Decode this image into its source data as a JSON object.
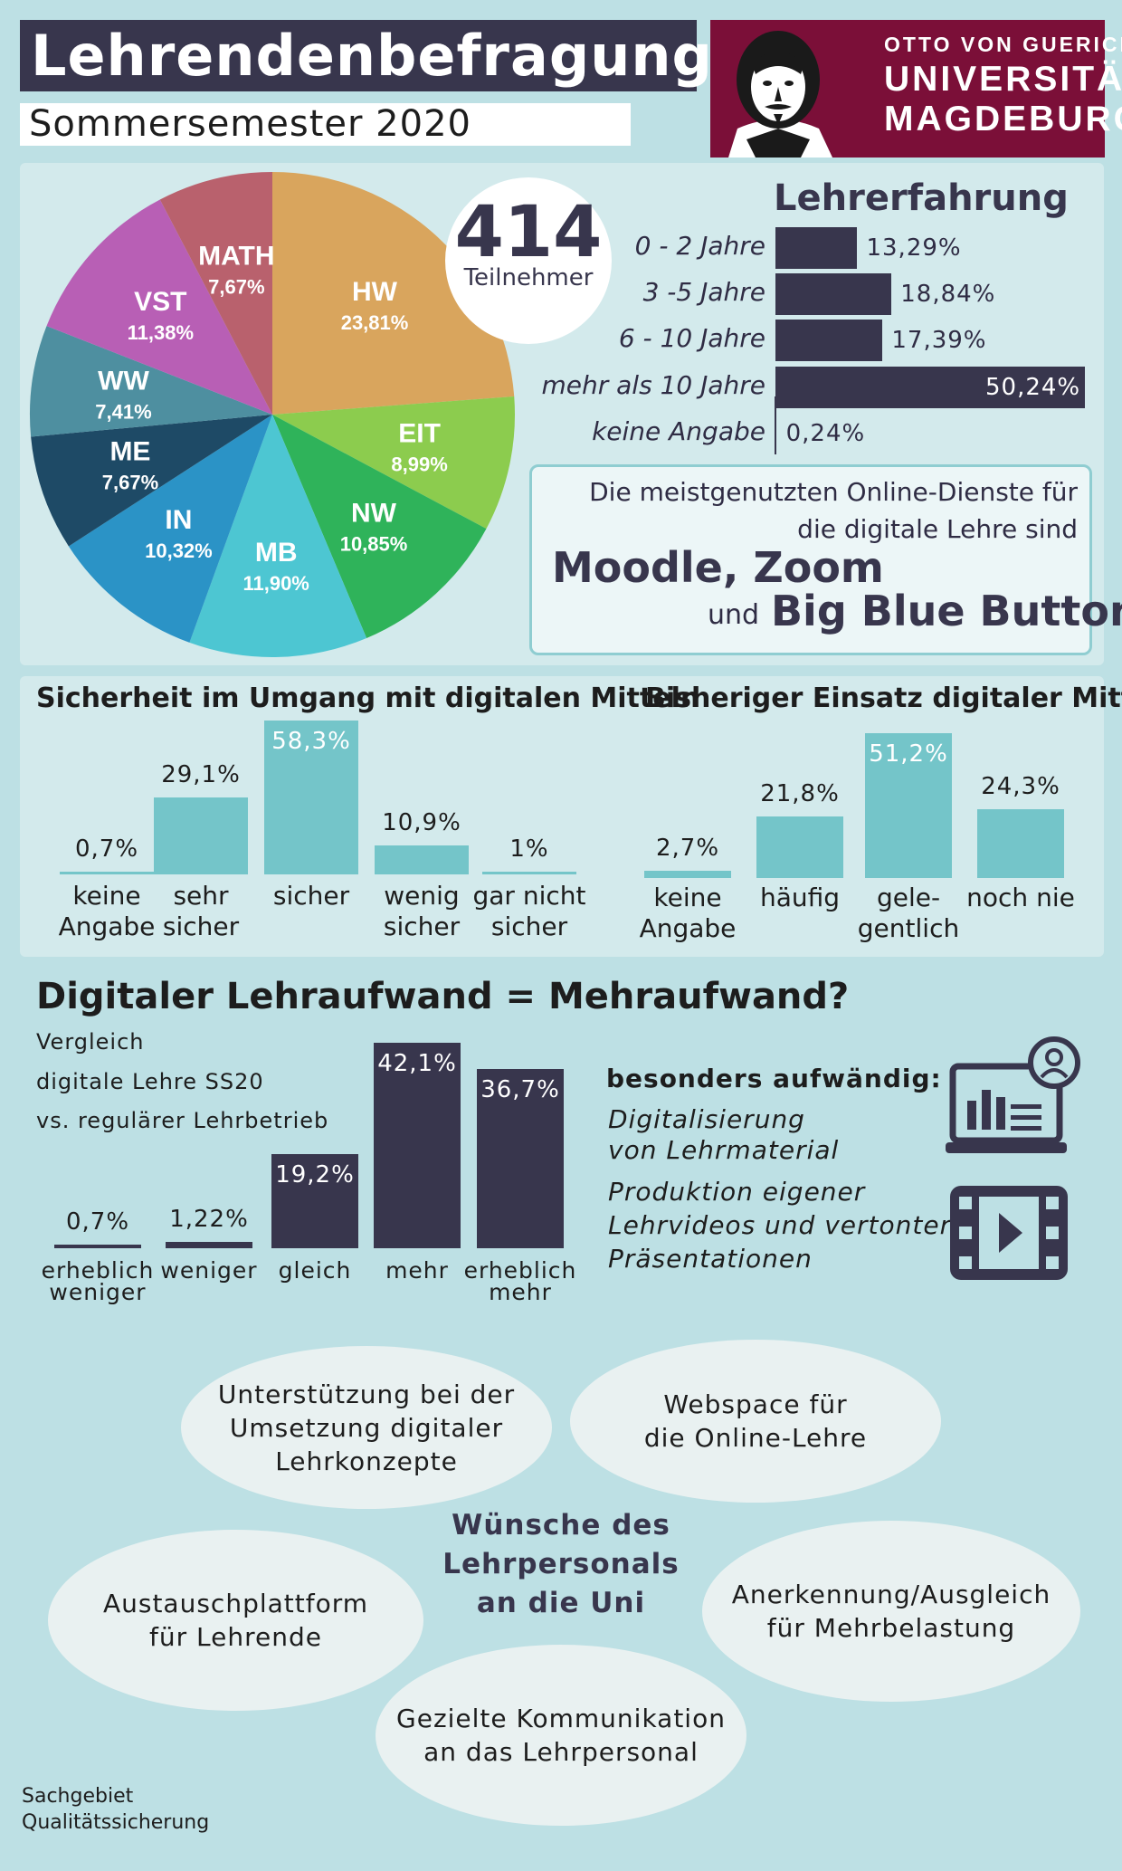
{
  "header": {
    "title": "Lehrendenbefragung",
    "subtitle": "Sommersemester 2020",
    "logo": {
      "line1": "OTTO VON GUERICKE",
      "line2": "UNIVERSITÄT",
      "line3": "MAGDEBURG",
      "portrait_icon": "otto-von-guericke-portrait"
    }
  },
  "participants": {
    "count": "414",
    "label": "Teilnehmer"
  },
  "colors": {
    "dark": "#38364d",
    "teal": "#74c5c9",
    "logo_red": "#7b0f38",
    "background": "#bde0e4",
    "panel": "#d3eaec"
  },
  "chart_data": [
    {
      "type": "pie",
      "title": "",
      "slices": [
        {
          "name": "HW",
          "label": "23,81%",
          "value": 23.81,
          "color": "#d9a55d"
        },
        {
          "name": "EIT",
          "label": "8,99%",
          "value": 8.99,
          "color": "#8ccc4e"
        },
        {
          "name": "NW",
          "label": "10,85%",
          "value": 10.85,
          "color": "#2fb35a"
        },
        {
          "name": "MB",
          "label": "11,90%",
          "value": 11.9,
          "color": "#4dc6d2"
        },
        {
          "name": "IN",
          "label": "10,32%",
          "value": 10.32,
          "color": "#2b93c6"
        },
        {
          "name": "ME",
          "label": "7,67%",
          "value": 7.67,
          "color": "#1e4a66"
        },
        {
          "name": "WW",
          "label": "7,41%",
          "value": 7.41,
          "color": "#4e8fa0"
        },
        {
          "name": "VST",
          "label": "11,38%",
          "value": 11.38,
          "color": "#b85fb5"
        },
        {
          "name": "MATH",
          "label": "7,67%",
          "value": 7.67,
          "color": "#b9616d"
        }
      ]
    },
    {
      "type": "bar",
      "orientation": "horizontal",
      "title": "Lehrerfahrung",
      "categories": [
        "0 - 2 Jahre",
        "3 -5 Jahre",
        "6 - 10 Jahre",
        "mehr als 10 Jahre",
        "keine Angabe"
      ],
      "values": [
        13.29,
        18.84,
        17.39,
        50.24,
        0.24
      ],
      "labels": [
        "13,29%",
        "18,84%",
        "17,39%",
        "50,24%",
        "0,24%"
      ]
    },
    {
      "type": "bar",
      "title": "Sicherheit im Umgang mit digitalen Mitteln",
      "categories": [
        "keine\nAngabe",
        "sehr\nsicher",
        "sicher",
        "wenig\nsicher",
        "gar nicht\nsicher"
      ],
      "values": [
        0.7,
        29.1,
        58.3,
        10.9,
        1
      ],
      "labels": [
        "0,7%",
        "29,1%",
        "58,3%",
        "10,9%",
        "1%"
      ]
    },
    {
      "type": "bar",
      "title": "Bisheriger Einsatz digitaler Mittel",
      "categories": [
        "keine\nAngabe",
        "häufig",
        "gele-\ngentlich",
        "noch nie"
      ],
      "values": [
        2.7,
        21.8,
        51.2,
        24.3
      ],
      "labels": [
        "2,7%",
        "21,8%",
        "51,2%",
        "24,3%"
      ]
    },
    {
      "type": "bar",
      "title": "Digitaler Lehraufwand = Mehraufwand?",
      "categories": [
        "erheblich\nweniger",
        "weniger",
        "gleich",
        "mehr",
        "erheblich\nmehr"
      ],
      "values": [
        0.7,
        1.22,
        19.2,
        42.1,
        36.7
      ],
      "labels": [
        "0,7%",
        "1,22%",
        "19,2%",
        "42,1%",
        "36,7%"
      ]
    }
  ],
  "services": {
    "line1": "Die meistgenutzten Online-Dienste für",
    "line2": "die digitale Lehre sind",
    "big1": "Moodle, Zoom",
    "und": "und",
    "big2": "Big Blue Button"
  },
  "lehraufwand": {
    "note1": "Vergleich",
    "note2": "digitale Lehre SS20",
    "note3": "vs. regulärer Lehrbetrieb",
    "aufwaendig_title": "besonders aufwändig:",
    "item1_l1": "Digitalisierung",
    "item1_l2": "von Lehrmaterial",
    "item2_l1": "Produktion eigener",
    "item2_l2": "Lehrvideos und vertonter",
    "item2_l3": "Präsentationen",
    "icon1": "laptop-chart-icon",
    "icon2": "video-player-icon"
  },
  "wishes": {
    "title": "Wünsche des\nLehrpersonals\nan die Uni",
    "items": [
      "Unterstützung bei der\nUmsetzung digitaler\nLehrkonzepte",
      "Webspace für\ndie Online-Lehre",
      "Austauschplattform\nfür Lehrende",
      "Anerkennung/Ausgleich\nfür Mehrbelastung",
      "Gezielte Kommunikation\nan das Lehrpersonal"
    ]
  },
  "footer": "Sachgebiet\nQualitätssicherung"
}
